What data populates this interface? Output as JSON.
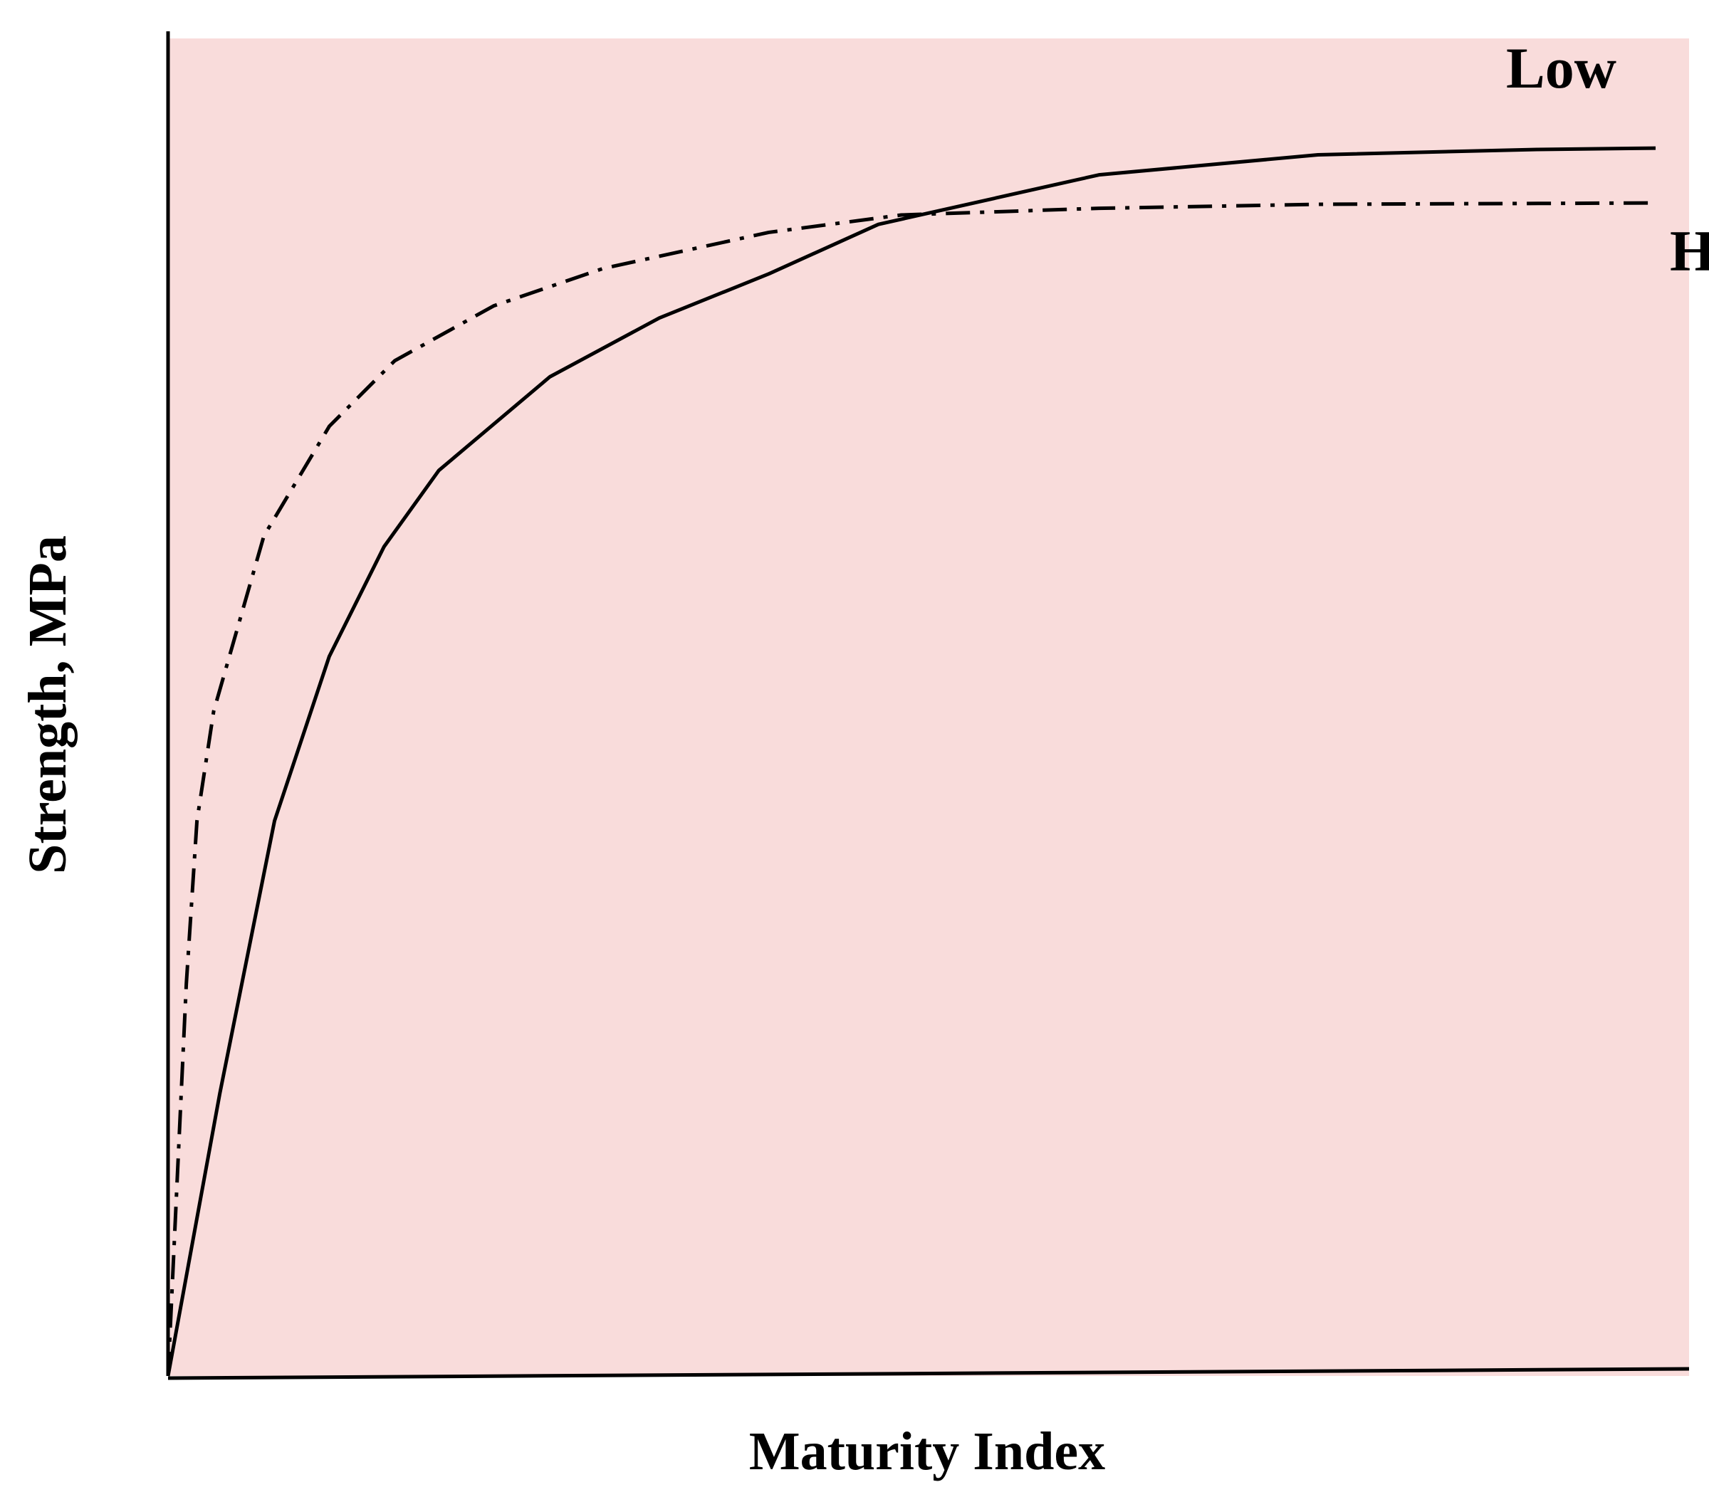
{
  "chart_data": {
    "type": "line",
    "x_label": "Maturity Index",
    "y_label": "Strength, MPa",
    "xlim": [
      0,
      100
    ],
    "ylim": [
      0,
      100
    ],
    "plot_background": "#f9dcdb",
    "series": [
      {
        "name": "Low",
        "color": "#000000",
        "dash": "solid",
        "x": [
          0,
          3.4,
          7.0,
          10.6,
          14.2,
          17.8,
          25.1,
          32.3,
          39.5,
          46.7,
          61.2,
          75.6,
          90.0,
          97.8
        ],
        "values": [
          0,
          21.1,
          41.5,
          53.8,
          62.0,
          67.7,
          74.7,
          79.1,
          82.4,
          86.1,
          89.8,
          91.3,
          91.7,
          91.8
        ]
      },
      {
        "name": "High",
        "color": "#000000",
        "dash": "dash-dot",
        "x": [
          0,
          1.2,
          1.9,
          3.0,
          6.3,
          10.6,
          14.9,
          21.4,
          28.6,
          39.5,
          48.2,
          61.2,
          75.6,
          97.8
        ],
        "values": [
          0,
          29.3,
          41.5,
          49.7,
          62.8,
          71.0,
          75.9,
          80.0,
          82.8,
          85.5,
          86.8,
          87.3,
          87.6,
          87.7
        ]
      }
    ]
  }
}
